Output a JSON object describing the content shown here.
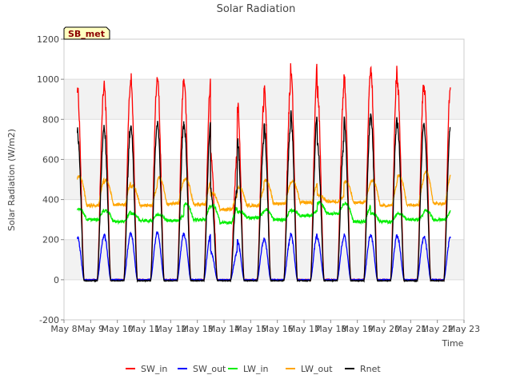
{
  "chart_data": {
    "type": "line",
    "title": "Solar Radiation",
    "xlabel": "Time",
    "ylabel": "Solar Radiation (W/m2)",
    "site_label": "SB_met",
    "ylim": [
      -200,
      1200
    ],
    "xlim_day": [
      8,
      23
    ],
    "yticks": [
      -200,
      0,
      200,
      400,
      600,
      800,
      1000,
      1200
    ],
    "xticks": [
      {
        "day": 8,
        "label": "May 8"
      },
      {
        "day": 9,
        "label": "May 9"
      },
      {
        "day": 10,
        "label": "May 10"
      },
      {
        "day": 11,
        "label": "May 11"
      },
      {
        "day": 12,
        "label": "May 12"
      },
      {
        "day": 13,
        "label": "May 13"
      },
      {
        "day": 14,
        "label": "May 14"
      },
      {
        "day": 15,
        "label": "May 15"
      },
      {
        "day": 16,
        "label": "May 16"
      },
      {
        "day": 17,
        "label": "May 17"
      },
      {
        "day": 18,
        "label": "May 18"
      },
      {
        "day": 19,
        "label": "May 19"
      },
      {
        "day": 20,
        "label": "May 20"
      },
      {
        "day": 21,
        "label": "May 21"
      },
      {
        "day": 22,
        "label": "May 22"
      },
      {
        "day": 23,
        "label": "May 23"
      }
    ],
    "grid": true,
    "legend_position": "bottom",
    "series": [
      {
        "name": "SW_in",
        "color": "#ff0000",
        "night": 0,
        "amp_noise": 60,
        "shape_power": 1.5,
        "day_noise": 40,
        "daily_peak": [
          980,
          1010,
          1030,
          1035,
          1020,
          650,
          900,
          1000,
          1080,
          970,
          1050,
          1080,
          1010,
          1005
        ]
      },
      {
        "name": "SW_out",
        "color": "#0000ff",
        "night": 0,
        "amp_noise": 15,
        "shape_power": 1.5,
        "day_noise": 12,
        "daily_peak": [
          222,
          235,
          240,
          238,
          232,
          145,
          200,
          215,
          235,
          215,
          230,
          228,
          220,
          222
        ]
      },
      {
        "name": "LW_in",
        "color": "#00ee00",
        "daily_min": [
          300,
          290,
          295,
          295,
          300,
          285,
          310,
          300,
          320,
          330,
          290,
          290,
          300,
          300
        ],
        "daily_max": [
          355,
          345,
          330,
          325,
          380,
          370,
          340,
          350,
          345,
          385,
          380,
          330,
          330,
          345
        ]
      },
      {
        "name": "LW_out",
        "color": "#ffa500",
        "daily_min": [
          370,
          375,
          370,
          380,
          375,
          350,
          370,
          380,
          385,
          390,
          385,
          370,
          375,
          380
        ],
        "daily_max": [
          515,
          495,
          470,
          510,
          500,
          430,
          460,
          495,
          490,
          420,
          490,
          495,
          520,
          540
        ]
      },
      {
        "name": "Rnet",
        "color": "#000000",
        "night": -5,
        "amp_noise": 40,
        "shape_power": 1.5,
        "day_noise": 30,
        "daily_peak": [
          760,
          775,
          790,
          800,
          795,
          470,
          705,
          785,
          845,
          705,
          820,
          835,
          795,
          785
        ]
      }
    ]
  }
}
